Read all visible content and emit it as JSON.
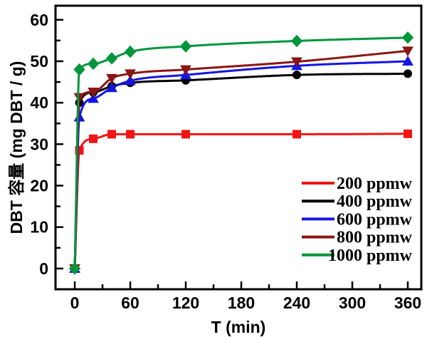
{
  "figure": {
    "background": "#ffffff",
    "frame_color": "#000000"
  },
  "chart_data": {
    "type": "line",
    "title": "",
    "xlabel": "T (min)",
    "ylabel": "DBT 容量 (mg DBT / g)",
    "xlim": [
      -20.8,
      374.6
    ],
    "ylim": [
      -5,
      63.4
    ],
    "x_major_ticks": [
      0,
      60,
      120,
      180,
      240,
      300,
      360
    ],
    "x_minor_ticks": [
      30,
      90,
      150,
      210,
      270,
      330
    ],
    "y_major_ticks": [
      0,
      10,
      20,
      30,
      40,
      50,
      60
    ],
    "y_minor_ticks": [
      5,
      15,
      25,
      35,
      45,
      55
    ],
    "grid": false,
    "legend_position": "lower-right",
    "x": [
      0,
      5,
      20,
      40,
      60,
      120,
      240,
      360
    ],
    "series": [
      {
        "name": "200 ppmw",
        "color": "#f01414",
        "marker": "square",
        "values": [
          0,
          28.5,
          31.3,
          32.4,
          32.4,
          32.4,
          32.4,
          32.5
        ]
      },
      {
        "name": "400 ppmw",
        "color": "#000000",
        "marker": "circle",
        "values": [
          0,
          40.0,
          42.5,
          44.0,
          44.8,
          45.4,
          46.7,
          47.0
        ]
      },
      {
        "name": "600 ppmw",
        "color": "#1515e0",
        "marker": "triangle-up",
        "values": [
          0,
          36.5,
          41.0,
          43.6,
          45.3,
          46.7,
          48.9,
          50.0
        ]
      },
      {
        "name": "800 ppmw",
        "color": "#8b1515",
        "marker": "triangle-down",
        "values": [
          0,
          41.3,
          42.6,
          45.9,
          47.0,
          48.0,
          49.9,
          52.5
        ]
      },
      {
        "name": "1000 ppmw",
        "color": "#00963c",
        "marker": "diamond",
        "values": [
          0,
          48.0,
          49.4,
          50.7,
          52.3,
          53.6,
          54.9,
          55.7
        ]
      }
    ]
  }
}
